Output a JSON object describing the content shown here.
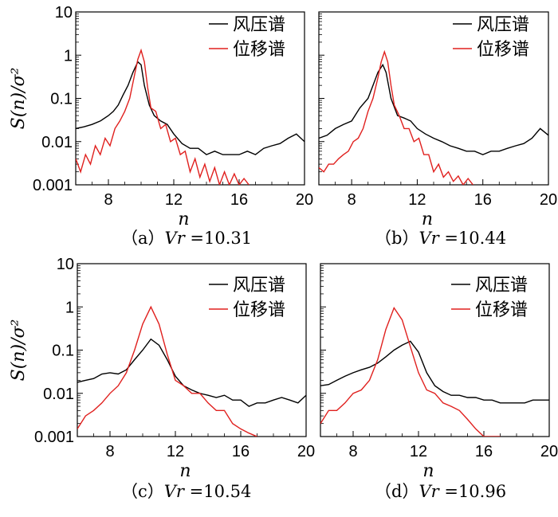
{
  "colors": {
    "wind": "#000000",
    "disp": "#e0201e"
  },
  "chart_data": [
    {
      "type": "line",
      "caption_prefix": "（a）",
      "vr_label": "Vr",
      "vr_value": "=10.31",
      "xlabel": "n",
      "ylabel": "S(n)/σ²",
      "yscale": "log",
      "xlim": [
        6,
        20
      ],
      "ylim": [
        0.001,
        10
      ],
      "xticks": [
        8,
        12,
        16,
        20
      ],
      "xtick_labels": [
        "8",
        "12",
        "16",
        "20"
      ],
      "yticks": [
        0.001,
        0.01,
        0.1,
        1,
        10
      ],
      "ytick_labels": [
        "0.001",
        "0.01",
        "0.1",
        "1",
        "10"
      ],
      "legend": [
        "风压谱",
        "位移谱"
      ],
      "legend_position": "top-right",
      "series": [
        {
          "name": "风压谱",
          "color": "#000000",
          "x": [
            6.0,
            6.5,
            7.0,
            7.5,
            8.0,
            8.3,
            8.6,
            8.9,
            9.2,
            9.5,
            9.8,
            10.0,
            10.2,
            10.5,
            10.8,
            11.2,
            11.6,
            12.0,
            12.5,
            13.0,
            13.5,
            14.0,
            14.5,
            15.0,
            15.5,
            16.0,
            16.5,
            17.0,
            17.5,
            18.0,
            18.5,
            19.0,
            19.5,
            20.0
          ],
          "y": [
            0.02,
            0.022,
            0.025,
            0.03,
            0.04,
            0.05,
            0.07,
            0.12,
            0.2,
            0.4,
            0.7,
            0.6,
            0.2,
            0.07,
            0.04,
            0.03,
            0.025,
            0.015,
            0.009,
            0.007,
            0.007,
            0.005,
            0.006,
            0.005,
            0.005,
            0.005,
            0.006,
            0.005,
            0.007,
            0.008,
            0.009,
            0.012,
            0.015,
            0.01
          ]
        },
        {
          "name": "位移谱",
          "color": "#e0201e",
          "x": [
            6.0,
            6.3,
            6.6,
            6.9,
            7.2,
            7.5,
            7.8,
            8.1,
            8.4,
            8.7,
            9.0,
            9.3,
            9.6,
            9.8,
            10.0,
            10.2,
            10.4,
            10.6,
            10.9,
            11.2,
            11.5,
            11.8,
            12.1,
            12.4,
            12.7,
            13.0,
            13.3,
            13.6,
            13.9,
            14.2,
            14.5,
            14.8,
            15.1,
            15.4,
            15.7,
            16.0,
            16.3,
            16.6
          ],
          "y": [
            0.004,
            0.002,
            0.005,
            0.003,
            0.008,
            0.005,
            0.012,
            0.008,
            0.02,
            0.03,
            0.05,
            0.1,
            0.35,
            0.8,
            1.3,
            0.7,
            0.18,
            0.06,
            0.05,
            0.02,
            0.025,
            0.01,
            0.012,
            0.005,
            0.006,
            0.002,
            0.004,
            0.0015,
            0.003,
            0.0012,
            0.0025,
            0.001,
            0.002,
            0.001,
            0.0018,
            0.001,
            0.0014,
            0.001
          ]
        }
      ]
    },
    {
      "type": "line",
      "caption_prefix": "（b）",
      "vr_label": "Vr",
      "vr_value": "=10.44",
      "xlabel": "n",
      "ylabel": "",
      "yscale": "log",
      "xlim": [
        6,
        20
      ],
      "ylim": [
        0.001,
        10
      ],
      "xticks": [
        8,
        12,
        16,
        20
      ],
      "xtick_labels": [
        "8",
        "12",
        "16",
        "20"
      ],
      "legend": [
        "风压谱",
        "位移谱"
      ],
      "legend_position": "top-right",
      "series": [
        {
          "name": "风压谱",
          "color": "#000000",
          "x": [
            6.0,
            6.5,
            7.0,
            7.5,
            8.0,
            8.5,
            9.0,
            9.3,
            9.6,
            9.9,
            10.1,
            10.4,
            10.8,
            11.2,
            11.6,
            12.0,
            12.5,
            13.0,
            13.5,
            14.0,
            14.5,
            15.0,
            15.5,
            16.0,
            16.5,
            17.0,
            17.5,
            18.0,
            18.5,
            19.0,
            19.5,
            20.0
          ],
          "y": [
            0.012,
            0.014,
            0.02,
            0.025,
            0.03,
            0.06,
            0.1,
            0.2,
            0.4,
            0.6,
            0.4,
            0.1,
            0.04,
            0.035,
            0.03,
            0.02,
            0.015,
            0.012,
            0.01,
            0.008,
            0.007,
            0.006,
            0.006,
            0.005,
            0.006,
            0.006,
            0.007,
            0.008,
            0.009,
            0.012,
            0.02,
            0.014
          ]
        },
        {
          "name": "位移谱",
          "color": "#e0201e",
          "x": [
            6.0,
            6.3,
            6.6,
            6.9,
            7.2,
            7.5,
            7.8,
            8.1,
            8.4,
            8.7,
            9.0,
            9.3,
            9.6,
            9.8,
            10.0,
            10.2,
            10.4,
            10.6,
            10.9,
            11.2,
            11.5,
            11.8,
            12.1,
            12.4,
            12.7,
            13.0,
            13.3,
            13.6,
            13.9,
            14.2,
            14.5,
            14.8,
            15.1,
            15.4
          ],
          "y": [
            0.0025,
            0.002,
            0.003,
            0.003,
            0.004,
            0.005,
            0.006,
            0.01,
            0.012,
            0.02,
            0.05,
            0.1,
            0.3,
            0.7,
            1.2,
            0.7,
            0.2,
            0.07,
            0.04,
            0.02,
            0.02,
            0.01,
            0.012,
            0.005,
            0.005,
            0.002,
            0.003,
            0.0015,
            0.002,
            0.0012,
            0.0016,
            0.001,
            0.0014,
            0.001
          ]
        }
      ]
    },
    {
      "type": "line",
      "caption_prefix": "（c）",
      "vr_label": "Vr",
      "vr_value": "=10.54",
      "xlabel": "n",
      "ylabel": "S(n)/σ²",
      "yscale": "log",
      "xlim": [
        6,
        20
      ],
      "ylim": [
        0.001,
        10
      ],
      "xticks": [
        8,
        12,
        16,
        20
      ],
      "xtick_labels": [
        "8",
        "12",
        "16",
        "20"
      ],
      "yticks": [
        0.001,
        0.01,
        0.1,
        1,
        10
      ],
      "ytick_labels": [
        "0.001",
        "0.01",
        "0.1",
        "1",
        "10"
      ],
      "legend": [
        "风压谱",
        "位移谱"
      ],
      "legend_position": "top-right",
      "series": [
        {
          "name": "风压谱",
          "color": "#000000",
          "x": [
            6.0,
            6.5,
            7.0,
            7.5,
            8.0,
            8.5,
            9.0,
            9.5,
            10.0,
            10.5,
            11.0,
            11.5,
            12.0,
            12.5,
            13.0,
            13.5,
            14.0,
            14.5,
            15.0,
            15.5,
            16.0,
            16.5,
            17.0,
            17.5,
            18.0,
            18.5,
            19.0,
            19.5,
            20.0
          ],
          "y": [
            0.018,
            0.02,
            0.022,
            0.028,
            0.03,
            0.028,
            0.035,
            0.06,
            0.1,
            0.18,
            0.13,
            0.06,
            0.025,
            0.015,
            0.012,
            0.01,
            0.009,
            0.008,
            0.009,
            0.007,
            0.007,
            0.005,
            0.006,
            0.006,
            0.007,
            0.008,
            0.007,
            0.006,
            0.009
          ]
        },
        {
          "name": "位移谱",
          "color": "#e0201e",
          "x": [
            6.0,
            6.5,
            7.0,
            7.5,
            8.0,
            8.5,
            9.0,
            9.5,
            10.0,
            10.5,
            11.0,
            11.5,
            12.0,
            12.5,
            13.0,
            13.5,
            14.0,
            14.5,
            15.0,
            15.5,
            16.0,
            16.5,
            17.0
          ],
          "y": [
            0.0015,
            0.003,
            0.004,
            0.006,
            0.01,
            0.015,
            0.03,
            0.1,
            0.4,
            1.0,
            0.4,
            0.08,
            0.02,
            0.015,
            0.01,
            0.01,
            0.006,
            0.004,
            0.004,
            0.002,
            0.0015,
            0.0012,
            0.001
          ]
        }
      ]
    },
    {
      "type": "line",
      "caption_prefix": "（d）",
      "vr_label": "Vr",
      "vr_value": "=10.96",
      "xlabel": "n",
      "ylabel": "",
      "yscale": "log",
      "xlim": [
        6,
        20
      ],
      "ylim": [
        0.001,
        10
      ],
      "xticks": [
        8,
        12,
        16,
        20
      ],
      "xtick_labels": [
        "8",
        "12",
        "16",
        "20"
      ],
      "legend": [
        "风压谱",
        "位移谱"
      ],
      "legend_position": "top-right",
      "series": [
        {
          "name": "风压谱",
          "color": "#000000",
          "x": [
            6.0,
            6.5,
            7.0,
            7.5,
            8.0,
            8.5,
            9.0,
            9.5,
            10.0,
            10.5,
            11.0,
            11.5,
            12.0,
            12.5,
            13.0,
            13.5,
            14.0,
            14.5,
            15.0,
            15.5,
            16.0,
            16.5,
            17.0,
            17.5,
            18.0,
            18.5,
            19.0,
            19.5,
            20.0
          ],
          "y": [
            0.015,
            0.016,
            0.02,
            0.025,
            0.03,
            0.035,
            0.04,
            0.05,
            0.07,
            0.1,
            0.13,
            0.16,
            0.09,
            0.03,
            0.015,
            0.011,
            0.009,
            0.009,
            0.008,
            0.008,
            0.007,
            0.007,
            0.006,
            0.006,
            0.006,
            0.006,
            0.007,
            0.007,
            0.007
          ]
        },
        {
          "name": "位移谱",
          "color": "#e0201e",
          "x": [
            6.0,
            6.5,
            7.0,
            7.5,
            8.0,
            8.5,
            9.0,
            9.5,
            10.0,
            10.5,
            11.0,
            11.5,
            12.0,
            12.5,
            13.0,
            13.5,
            14.0,
            14.5,
            15.0,
            15.5,
            16.0,
            16.5,
            17.0
          ],
          "y": [
            0.002,
            0.004,
            0.004,
            0.006,
            0.01,
            0.012,
            0.02,
            0.06,
            0.3,
            0.95,
            0.5,
            0.12,
            0.03,
            0.012,
            0.01,
            0.006,
            0.005,
            0.004,
            0.0025,
            0.0015,
            0.001,
            0.001,
            0.001
          ]
        }
      ]
    }
  ]
}
